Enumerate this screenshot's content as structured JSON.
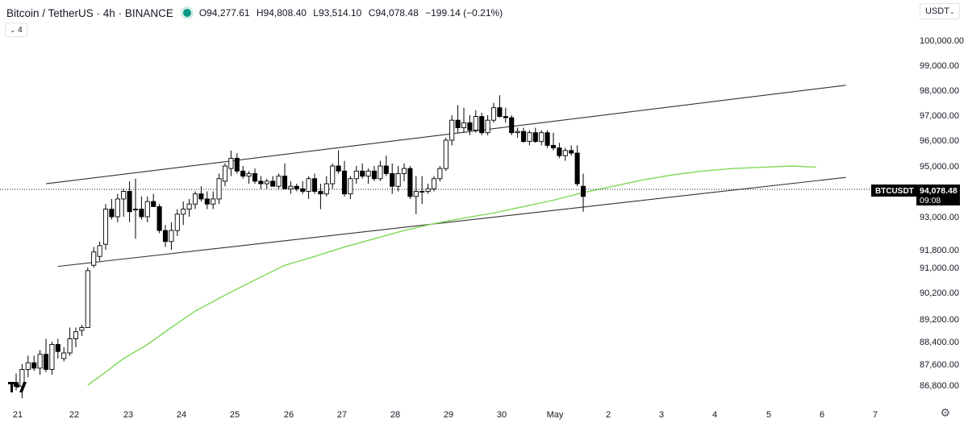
{
  "header": {
    "title": "Bitcoin / TetherUS · 4h · BINANCE",
    "open": "O94,277.61",
    "high": "H94,808.40",
    "low": "L93,514.10",
    "close": "C94,078.48",
    "change": "−199.14 (−0.21%)"
  },
  "indicator_toggle": "4",
  "currency_select": "USDT",
  "price_label": {
    "symbol": "BTCUSDT",
    "price": "94,078.48",
    "countdown": "09:08"
  },
  "colors": {
    "candle_up": "#ffffff",
    "candle_down": "#000000",
    "moving_average": "#7ed957",
    "channel": "#333333"
  },
  "chart_data": {
    "type": "candlestick",
    "y_ticks": [
      "100,000.00",
      "99,000.00",
      "98,000.00",
      "97,000.00",
      "96,000.00",
      "95,000.00",
      "93,000.00",
      "91,800.00",
      "91,000.00",
      "90,200.00",
      "89,200.00",
      "88,400.00",
      "87,600.00",
      "86,800.00"
    ],
    "x_ticks": [
      "21",
      "22",
      "23",
      "24",
      "25",
      "26",
      "27",
      "28",
      "29",
      "30",
      "May",
      "2",
      "3",
      "4",
      "5",
      "6",
      "7"
    ],
    "candles": [
      {
        "o": 86900,
        "h": 87250,
        "l": 86600,
        "c": 86750
      },
      {
        "o": 86750,
        "h": 87600,
        "l": 86300,
        "c": 87400
      },
      {
        "o": 87400,
        "h": 87900,
        "l": 87100,
        "c": 87650
      },
      {
        "o": 87650,
        "h": 87900,
        "l": 87350,
        "c": 87450
      },
      {
        "o": 87450,
        "h": 88100,
        "l": 87200,
        "c": 87950
      },
      {
        "o": 87950,
        "h": 88500,
        "l": 87300,
        "c": 87400
      },
      {
        "o": 87400,
        "h": 88400,
        "l": 87200,
        "c": 88300
      },
      {
        "o": 88300,
        "h": 88500,
        "l": 87800,
        "c": 88050
      },
      {
        "o": 87800,
        "h": 88200,
        "l": 87700,
        "c": 88000
      },
      {
        "o": 88000,
        "h": 88900,
        "l": 87900,
        "c": 88500
      },
      {
        "o": 88500,
        "h": 88900,
        "l": 88200,
        "c": 88750
      },
      {
        "o": 88800,
        "h": 89000,
        "l": 88600,
        "c": 88900
      },
      {
        "o": 88900,
        "h": 91000,
        "l": 88900,
        "c": 90900
      },
      {
        "o": 91100,
        "h": 91900,
        "l": 91000,
        "c": 91700
      },
      {
        "o": 91500,
        "h": 92100,
        "l": 91300,
        "c": 91950
      },
      {
        "o": 92000,
        "h": 93500,
        "l": 91800,
        "c": 93300
      },
      {
        "o": 93300,
        "h": 93700,
        "l": 92900,
        "c": 93000
      },
      {
        "o": 93000,
        "h": 93900,
        "l": 92800,
        "c": 93700
      },
      {
        "o": 93700,
        "h": 94100,
        "l": 93000,
        "c": 94000
      },
      {
        "o": 94000,
        "h": 94400,
        "l": 92800,
        "c": 93200
      },
      {
        "o": 93300,
        "h": 94500,
        "l": 92200,
        "c": 93300
      },
      {
        "o": 93300,
        "h": 93800,
        "l": 92900,
        "c": 93000
      },
      {
        "o": 93000,
        "h": 93800,
        "l": 92800,
        "c": 93600
      },
      {
        "o": 93600,
        "h": 93900,
        "l": 93400,
        "c": 93400
      },
      {
        "o": 93400,
        "h": 93500,
        "l": 92400,
        "c": 92500
      },
      {
        "o": 92500,
        "h": 92700,
        "l": 91900,
        "c": 92100
      },
      {
        "o": 92100,
        "h": 92800,
        "l": 91800,
        "c": 92500
      },
      {
        "o": 92500,
        "h": 93300,
        "l": 92300,
        "c": 93100
      },
      {
        "o": 93100,
        "h": 93600,
        "l": 92700,
        "c": 93300
      },
      {
        "o": 93300,
        "h": 93700,
        "l": 93000,
        "c": 93500
      },
      {
        "o": 93500,
        "h": 94000,
        "l": 93300,
        "c": 93900
      },
      {
        "o": 93900,
        "h": 94200,
        "l": 93600,
        "c": 93700
      },
      {
        "o": 93700,
        "h": 94000,
        "l": 93300,
        "c": 93500
      },
      {
        "o": 93500,
        "h": 94000,
        "l": 93300,
        "c": 93700
      },
      {
        "o": 93700,
        "h": 94700,
        "l": 93500,
        "c": 94500
      },
      {
        "o": 94400,
        "h": 95100,
        "l": 94200,
        "c": 95000
      },
      {
        "o": 94900,
        "h": 95600,
        "l": 94600,
        "c": 95300
      },
      {
        "o": 95300,
        "h": 95500,
        "l": 94700,
        "c": 94800
      },
      {
        "o": 94800,
        "h": 95000,
        "l": 94500,
        "c": 94600
      },
      {
        "o": 94600,
        "h": 94800,
        "l": 94300,
        "c": 94700
      },
      {
        "o": 94700,
        "h": 94900,
        "l": 94300,
        "c": 94400
      },
      {
        "o": 94400,
        "h": 94600,
        "l": 94100,
        "c": 94300
      },
      {
        "o": 94300,
        "h": 94500,
        "l": 94100,
        "c": 94400
      },
      {
        "o": 94400,
        "h": 94600,
        "l": 94200,
        "c": 94200
      },
      {
        "o": 94200,
        "h": 94700,
        "l": 94100,
        "c": 94600
      },
      {
        "o": 94600,
        "h": 95100,
        "l": 94100,
        "c": 94100
      },
      {
        "o": 94100,
        "h": 94400,
        "l": 93900,
        "c": 94200
      },
      {
        "o": 94200,
        "h": 94300,
        "l": 94000,
        "c": 94100
      },
      {
        "o": 94100,
        "h": 94400,
        "l": 93900,
        "c": 94000
      },
      {
        "o": 94000,
        "h": 94600,
        "l": 93700,
        "c": 94500
      },
      {
        "o": 94500,
        "h": 94700,
        "l": 93900,
        "c": 94000
      },
      {
        "o": 94000,
        "h": 94300,
        "l": 93300,
        "c": 93900
      },
      {
        "o": 93900,
        "h": 94600,
        "l": 93800,
        "c": 94300
      },
      {
        "o": 94300,
        "h": 95100,
        "l": 94100,
        "c": 95000
      },
      {
        "o": 95000,
        "h": 95600,
        "l": 94700,
        "c": 94800
      },
      {
        "o": 94800,
        "h": 95200,
        "l": 93800,
        "c": 93900
      },
      {
        "o": 93900,
        "h": 94600,
        "l": 93700,
        "c": 94500
      },
      {
        "o": 94500,
        "h": 95000,
        "l": 94300,
        "c": 94800
      },
      {
        "o": 94800,
        "h": 95100,
        "l": 94500,
        "c": 94600
      },
      {
        "o": 94600,
        "h": 94900,
        "l": 94300,
        "c": 94800
      },
      {
        "o": 94800,
        "h": 95000,
        "l": 94400,
        "c": 94500
      },
      {
        "o": 94500,
        "h": 95200,
        "l": 94400,
        "c": 95000
      },
      {
        "o": 95000,
        "h": 95400,
        "l": 94600,
        "c": 94700
      },
      {
        "o": 94700,
        "h": 95100,
        "l": 93900,
        "c": 94200
      },
      {
        "o": 94200,
        "h": 95000,
        "l": 94000,
        "c": 94700
      },
      {
        "o": 94700,
        "h": 95100,
        "l": 94400,
        "c": 94900
      },
      {
        "o": 94900,
        "h": 95000,
        "l": 93700,
        "c": 93800
      },
      {
        "o": 93800,
        "h": 94600,
        "l": 93100,
        "c": 94000
      },
      {
        "o": 94000,
        "h": 94600,
        "l": 93500,
        "c": 94000
      },
      {
        "o": 94000,
        "h": 94300,
        "l": 93900,
        "c": 94100
      },
      {
        "o": 94100,
        "h": 94600,
        "l": 94000,
        "c": 94500
      },
      {
        "o": 94500,
        "h": 95000,
        "l": 94400,
        "c": 94900
      },
      {
        "o": 94900,
        "h": 96100,
        "l": 94800,
        "c": 96000
      },
      {
        "o": 96000,
        "h": 97000,
        "l": 95800,
        "c": 96800
      },
      {
        "o": 96800,
        "h": 97400,
        "l": 96300,
        "c": 96500
      },
      {
        "o": 96500,
        "h": 97300,
        "l": 96300,
        "c": 96700
      },
      {
        "o": 96700,
        "h": 97000,
        "l": 96200,
        "c": 96400
      },
      {
        "o": 96400,
        "h": 97200,
        "l": 96300,
        "c": 96950
      },
      {
        "o": 96950,
        "h": 97100,
        "l": 96200,
        "c": 96300
      },
      {
        "o": 96300,
        "h": 97000,
        "l": 96200,
        "c": 96800
      },
      {
        "o": 96800,
        "h": 97500,
        "l": 96700,
        "c": 97300
      },
      {
        "o": 97300,
        "h": 97800,
        "l": 96900,
        "c": 96950
      },
      {
        "o": 96950,
        "h": 97300,
        "l": 96700,
        "c": 96900
      },
      {
        "o": 96900,
        "h": 97000,
        "l": 96200,
        "c": 96300
      },
      {
        "o": 96300,
        "h": 96500,
        "l": 96100,
        "c": 96350
      },
      {
        "o": 96350,
        "h": 96500,
        "l": 95900,
        "c": 95950
      },
      {
        "o": 95950,
        "h": 96400,
        "l": 95800,
        "c": 96300
      },
      {
        "o": 96300,
        "h": 96500,
        "l": 95900,
        "c": 95950
      },
      {
        "o": 95950,
        "h": 96400,
        "l": 95800,
        "c": 96300
      },
      {
        "o": 96300,
        "h": 96400,
        "l": 95700,
        "c": 95800
      },
      {
        "o": 95800,
        "h": 96300,
        "l": 95600,
        "c": 95700
      },
      {
        "o": 95700,
        "h": 95900,
        "l": 95300,
        "c": 95400
      },
      {
        "o": 95400,
        "h": 95700,
        "l": 95200,
        "c": 95600
      },
      {
        "o": 95600,
        "h": 95800,
        "l": 95400,
        "c": 95500
      },
      {
        "o": 95500,
        "h": 95800,
        "l": 94200,
        "c": 94300
      },
      {
        "o": 94200,
        "h": 94700,
        "l": 93200,
        "c": 93800
      }
    ],
    "ma": [
      [
        12,
        86800
      ],
      [
        15,
        87300
      ],
      [
        18,
        87800
      ],
      [
        22,
        88300
      ],
      [
        26,
        88900
      ],
      [
        30,
        89500
      ],
      [
        35,
        90100
      ],
      [
        40,
        90600
      ],
      [
        45,
        91100
      ],
      [
        50,
        91500
      ],
      [
        55,
        91900
      ],
      [
        60,
        92200
      ],
      [
        65,
        92500
      ],
      [
        70,
        92750
      ],
      [
        75,
        92950
      ],
      [
        80,
        93150
      ],
      [
        85,
        93400
      ],
      [
        90,
        93650
      ],
      [
        95,
        93950
      ],
      [
        100,
        94200
      ],
      [
        105,
        94450
      ],
      [
        110,
        94650
      ],
      [
        115,
        94800
      ],
      [
        120,
        94900
      ],
      [
        125,
        94950
      ],
      [
        130,
        95000
      ],
      [
        134,
        94950
      ]
    ],
    "channel_upper": [
      [
        5,
        94300
      ],
      [
        139,
        98200
      ]
    ],
    "channel_lower": [
      [
        7,
        91050
      ],
      [
        139,
        94550
      ]
    ],
    "last_price": 94078.48
  }
}
